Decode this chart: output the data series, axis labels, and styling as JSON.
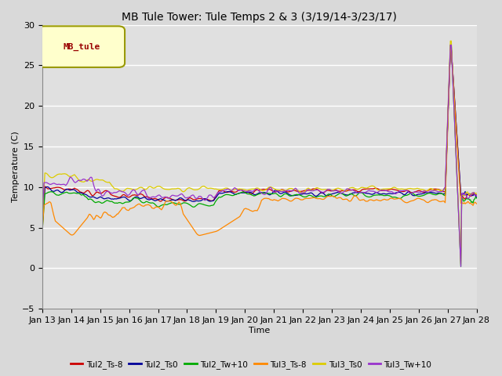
{
  "title": "MB Tule Tower: Tule Temps 2 & 3 (3/19/14-3/23/17)",
  "xlabel": "Time",
  "ylabel": "Temperature (C)",
  "ylim": [
    -5,
    30
  ],
  "yticks": [
    -5,
    0,
    5,
    10,
    15,
    20,
    25,
    30
  ],
  "xtick_labels": [
    "Jan 13",
    "Jan 14",
    "Jan 15",
    "Jan 16",
    "Jan 17",
    "Jan 18",
    "Jan 19",
    "Jan 20",
    "Jan 21",
    "Jan 22",
    "Jan 23",
    "Jan 24",
    "Jan 25",
    "Jan 26",
    "Jan 27",
    "Jan 28"
  ],
  "n_points": 500,
  "legend_label": "MB_tule",
  "series_labels": [
    "Tul2_Ts-8",
    "Tul2_Ts0",
    "Tul2_Tw+10",
    "Tul3_Ts-8",
    "Tul3_Ts0",
    "Tul3_Tw+10"
  ],
  "series_colors": [
    "#cc0000",
    "#000099",
    "#00aa00",
    "#ff8800",
    "#ddcc00",
    "#9933cc"
  ],
  "fig_facecolor": "#d9d9d9",
  "plot_bg_color": "#e0e0e0",
  "grid_color": "#ffffff",
  "title_fontsize": 10,
  "axis_fontsize": 8,
  "legend_box_facecolor": "#ffffcc",
  "legend_box_edgecolor": "#999900",
  "legend_text_color": "#990000"
}
